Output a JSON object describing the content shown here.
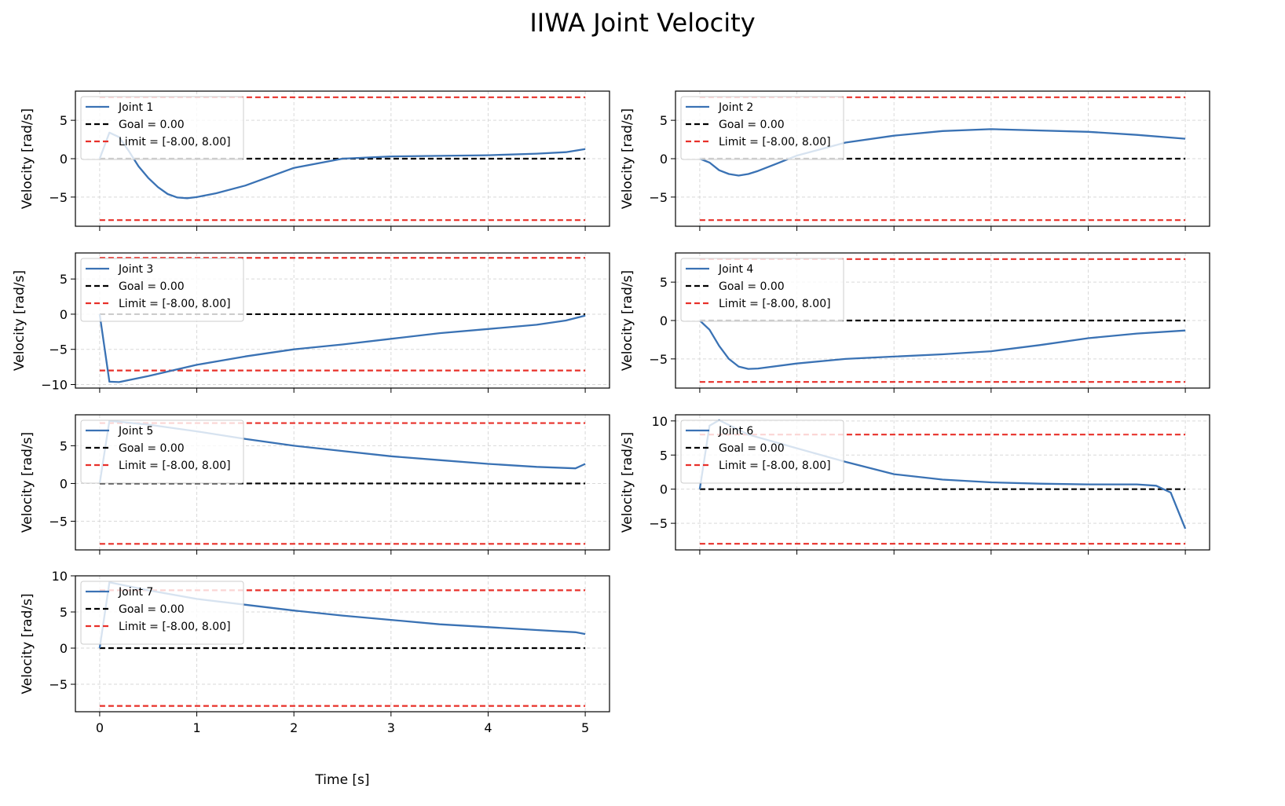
{
  "chart_data": {
    "title": "IIWA Joint Velocity",
    "xlabel": "Time [s]",
    "ylabel": "Velocity [rad/s]",
    "xlim": [
      -0.25,
      5.25
    ],
    "xticks": [
      0,
      1,
      2,
      3,
      4,
      5
    ],
    "grid": true,
    "legend_placement": "upper-left",
    "colors": {
      "velocity": "#3a72b4",
      "goal": "#000000",
      "limit": "#e8302a"
    },
    "panels": [
      {
        "type": "line",
        "name": "Joint 1",
        "goal_label": "Goal = 0.00",
        "limit_label": "Limit = [-8.00, 8.00]",
        "goal": 0,
        "limits": [
          -8,
          8
        ],
        "ylim": [
          -8.8,
          8.8
        ],
        "yticks": [
          -5,
          0,
          5
        ],
        "t": [
          0,
          0.1,
          0.2,
          0.3,
          0.4,
          0.5,
          0.6,
          0.7,
          0.8,
          0.9,
          1.0,
          1.2,
          1.5,
          2.0,
          2.5,
          3.0,
          4.0,
          4.5,
          4.8,
          5.0
        ],
        "v": [
          0,
          3.4,
          2.8,
          1.0,
          -1.0,
          -2.5,
          -3.7,
          -4.6,
          -5.05,
          -5.15,
          -5.0,
          -4.5,
          -3.5,
          -1.2,
          0,
          0.3,
          0.45,
          0.65,
          0.85,
          1.25
        ]
      },
      {
        "type": "line",
        "name": "Joint 2",
        "goal_label": "Goal = 0.00",
        "limit_label": "Limit = [-8.00, 8.00]",
        "goal": 0,
        "limits": [
          -8,
          8
        ],
        "ylim": [
          -8.8,
          8.8
        ],
        "yticks": [
          -5,
          0,
          5
        ],
        "t": [
          0,
          0.1,
          0.2,
          0.3,
          0.4,
          0.5,
          0.6,
          0.8,
          1.0,
          1.5,
          2.0,
          2.5,
          3.0,
          4.0,
          4.5,
          5.0
        ],
        "v": [
          0,
          -0.5,
          -1.5,
          -2.0,
          -2.2,
          -2.0,
          -1.6,
          -0.6,
          0.4,
          2.1,
          3.0,
          3.6,
          3.85,
          3.5,
          3.1,
          2.6
        ]
      },
      {
        "type": "line",
        "name": "Joint 3",
        "goal_label": "Goal = 0.00",
        "limit_label": "Limit = [-8.00, 8.00]",
        "goal": 0,
        "limits": [
          -8,
          8
        ],
        "ylim": [
          -10.5,
          8.7
        ],
        "yticks": [
          -10,
          -5,
          0,
          5
        ],
        "t": [
          0,
          0.1,
          0.2,
          0.5,
          1.0,
          1.5,
          2.0,
          2.5,
          3.0,
          3.5,
          4.0,
          4.5,
          4.8,
          5.0
        ],
        "v": [
          0,
          -9.6,
          -9.65,
          -8.8,
          -7.2,
          -6.0,
          -5.0,
          -4.3,
          -3.5,
          -2.7,
          -2.1,
          -1.5,
          -0.9,
          -0.2
        ]
      },
      {
        "type": "line",
        "name": "Joint 4",
        "goal_label": "Goal = 0.00",
        "limit_label": "Limit = [-8.00, 8.00]",
        "goal": 0,
        "limits": [
          -8,
          8
        ],
        "ylim": [
          -8.8,
          8.8
        ],
        "yticks": [
          -5,
          0,
          5
        ],
        "t": [
          0,
          0.1,
          0.2,
          0.3,
          0.4,
          0.5,
          0.6,
          1.0,
          1.5,
          2.0,
          2.5,
          3.0,
          3.5,
          4.0,
          4.5,
          5.0
        ],
        "v": [
          0,
          -1.2,
          -3.3,
          -5.0,
          -6.0,
          -6.3,
          -6.25,
          -5.6,
          -5.0,
          -4.7,
          -4.4,
          -4.0,
          -3.2,
          -2.3,
          -1.7,
          -1.3
        ]
      },
      {
        "type": "line",
        "name": "Joint 5",
        "goal_label": "Goal = 0.00",
        "limit_label": "Limit = [-8.00, 8.00]",
        "goal": 0,
        "limits": [
          -8,
          8
        ],
        "ylim": [
          -8.8,
          9.1
        ],
        "yticks": [
          -5,
          0,
          5
        ],
        "t": [
          0,
          0.1,
          0.5,
          1.0,
          1.5,
          2.0,
          2.5,
          3.0,
          3.5,
          4.0,
          4.5,
          4.9,
          5.0
        ],
        "v": [
          0,
          8.3,
          7.8,
          6.9,
          5.9,
          5.0,
          4.3,
          3.6,
          3.1,
          2.6,
          2.2,
          2.0,
          2.6
        ]
      },
      {
        "type": "line",
        "name": "Joint 6",
        "goal_label": "Goal = 0.00",
        "limit_label": "Limit = [-8.00, 8.00]",
        "goal": 0,
        "limits": [
          -8,
          8
        ],
        "ylim": [
          -8.9,
          10.9
        ],
        "yticks": [
          -5,
          0,
          5,
          10
        ],
        "t": [
          0,
          0.1,
          0.2,
          0.5,
          1.0,
          1.5,
          2.0,
          2.5,
          3.0,
          3.5,
          4.0,
          4.5,
          4.7,
          4.85,
          5.0
        ],
        "v": [
          0,
          9.3,
          10.1,
          8.0,
          6.0,
          4.0,
          2.2,
          1.4,
          1.0,
          0.8,
          0.7,
          0.7,
          0.5,
          -0.5,
          -5.8
        ]
      },
      {
        "type": "line",
        "name": "Joint 7",
        "goal_label": "Goal = 0.00",
        "limit_label": "Limit = [-8.00, 8.00]",
        "goal": 0,
        "limits": [
          -8,
          8
        ],
        "ylim": [
          -8.8,
          10.0
        ],
        "yticks": [
          -5,
          0,
          5,
          10
        ],
        "t": [
          0,
          0.1,
          0.5,
          1.0,
          1.5,
          2.0,
          2.5,
          3.0,
          3.5,
          4.0,
          4.5,
          4.9,
          5.0
        ],
        "v": [
          0,
          9.1,
          8.0,
          6.8,
          6.0,
          5.2,
          4.5,
          3.9,
          3.3,
          2.9,
          2.5,
          2.2,
          1.95
        ]
      }
    ]
  }
}
